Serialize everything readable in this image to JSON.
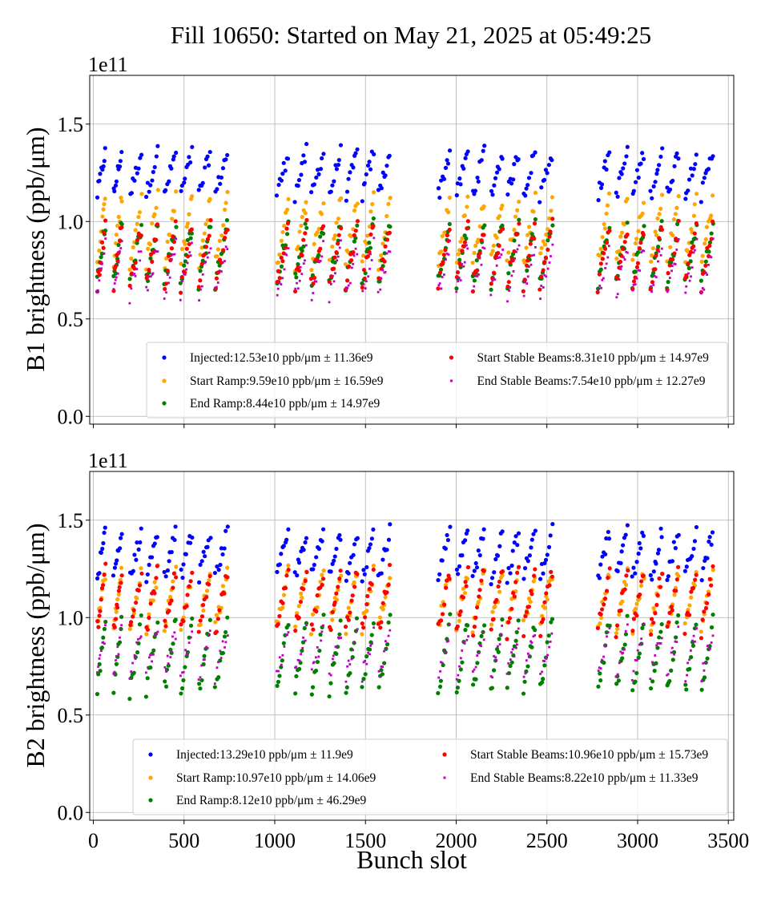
{
  "figure": {
    "title": "Fill 10650: Started on May 21, 2025 at 05:49:25"
  },
  "chart_data": [
    {
      "type": "scatter",
      "ylabel": "B1 brightness (ppb/μm)",
      "xlabel": "",
      "scale_label": "1e11",
      "xlim": [
        -20,
        3530
      ],
      "ylim": [
        -0.04,
        1.75
      ],
      "xticks": [
        0,
        500,
        1000,
        1500,
        2000,
        2500,
        3000,
        3500
      ],
      "yticks": [
        0.0,
        0.5,
        1.0,
        1.5
      ],
      "ytick_labels": [
        "0.0",
        "0.5",
        "1.0",
        "1.5"
      ],
      "grid": true,
      "legend": "lower-right",
      "series": [
        {
          "name": "Injected:12.53e10 ppb/μm ± 11.36e9",
          "color": "#0000ff",
          "marker": "dot",
          "mean": 1.253,
          "spread": 0.1136
        },
        {
          "name": "Start Ramp:9.59e10 ppb/μm ± 16.59e9",
          "color": "#ffa500",
          "marker": "dot",
          "mean": 0.959,
          "spread": 0.1659
        },
        {
          "name": "End Ramp:8.44e10 ppb/μm ± 14.97e9",
          "color": "#008000",
          "marker": "dot",
          "mean": 0.844,
          "spread": 0.1497
        },
        {
          "name": "Start Stable Beams:8.31e10 ppb/μm ± 14.97e9",
          "color": "#ff0000",
          "marker": "dot",
          "mean": 0.831,
          "spread": 0.1497
        },
        {
          "name": "End Stable Beams:7.54e10 ppb/μm ± 12.27e9",
          "color": "#bf00bf",
          "marker": "square",
          "mean": 0.754,
          "spread": 0.1227
        }
      ]
    },
    {
      "type": "scatter",
      "ylabel": "B2 brightness (ppb/μm)",
      "xlabel": "Bunch slot",
      "scale_label": "1e11",
      "xlim": [
        -20,
        3530
      ],
      "ylim": [
        -0.04,
        1.75
      ],
      "xticks": [
        0,
        500,
        1000,
        1500,
        2000,
        2500,
        3000,
        3500
      ],
      "xtick_labels": [
        "0",
        "500",
        "1000",
        "1500",
        "2000",
        "2500",
        "3000",
        "3500"
      ],
      "yticks": [
        0.0,
        0.5,
        1.0,
        1.5
      ],
      "ytick_labels": [
        "0.0",
        "0.5",
        "1.0",
        "1.5"
      ],
      "grid": true,
      "legend": "lower-right",
      "series": [
        {
          "name": "Injected:13.29e10 ppb/μm ± 11.9e9",
          "color": "#0000ff",
          "marker": "dot",
          "mean": 1.329,
          "spread": 0.119
        },
        {
          "name": "Start Ramp:10.97e10 ppb/μm ± 14.06e9",
          "color": "#ffa500",
          "marker": "dot",
          "mean": 1.097,
          "spread": 0.1406
        },
        {
          "name": "End Ramp:8.12e10 ppb/μm ± 46.29e9",
          "color": "#008000",
          "marker": "dot",
          "mean": 0.812,
          "spread": 0.4629
        },
        {
          "name": "Start Stable Beams:10.96e10 ppb/μm ± 15.73e9",
          "color": "#ff0000",
          "marker": "dot",
          "mean": 1.096,
          "spread": 0.1573
        },
        {
          "name": "End Stable Beams:8.22e10 ppb/μm ± 11.33e9",
          "color": "#bf00bf",
          "marker": "square",
          "mean": 0.822,
          "spread": 0.1133
        }
      ]
    }
  ]
}
